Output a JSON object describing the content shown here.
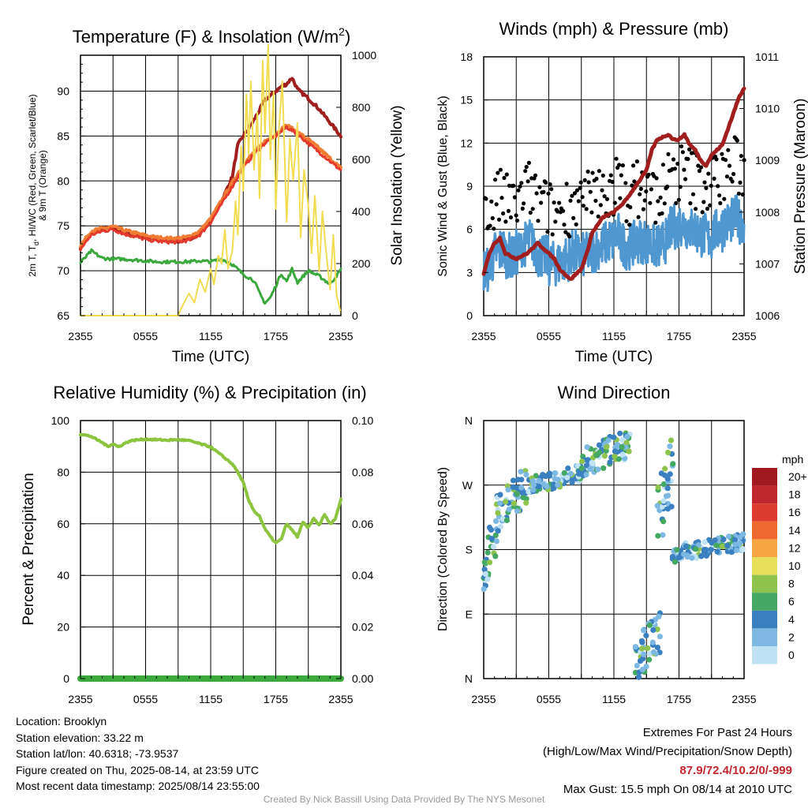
{
  "panels": {
    "temp": {
      "title": "Temperature (F) & Insolation (W/m",
      "title_sup": "2",
      "title_close": ")",
      "ylabel_line1": "2m T, T",
      "ylabel_sub": "d",
      "ylabel_line1b": ", HI/WC (Red, Green, Scarlet/Blue)",
      "ylabel_line2": "& 9m T (Orange)",
      "ylabel_right": "Solar Insolation (Yellow)",
      "xlabel": "Time (UTC)"
    },
    "wind": {
      "title": "Winds (mph) & Pressure (mb)",
      "ylabel_left": "Sonic Wind & Gust (Blue, Black)",
      "ylabel_right": "Station Pressure (Maroon)",
      "xlabel": "Time (UTC)"
    },
    "rh": {
      "title": "Relative Humidity (%) & Precipitation (in)",
      "ylabel_left": "Percent & Precipitation"
    },
    "wdir": {
      "title": "Wind Direction",
      "ylabel_left": "Direction (Colored By Speed)",
      "legend_unit": "mph",
      "legend_labels": [
        "20+",
        "18",
        "16",
        "14",
        "12",
        "10",
        "8",
        "6",
        "4",
        "2",
        "0"
      ],
      "legend_colors": [
        "#9e1a1e",
        "#c1262d",
        "#de3b2f",
        "#ef6a30",
        "#f6a742",
        "#e8df5a",
        "#8ec44d",
        "#44a862",
        "#3a7fc0",
        "#7cb8e2",
        "#bfe2f5"
      ]
    }
  },
  "station": {
    "location": "Location: Brooklyn",
    "elevation": "Station elevation: 33.22 m",
    "latlon": "Station lat/lon: 40.6318; -73.9537",
    "created": "Figure created on Thu, 2025-08-14, at 23:59 UTC",
    "recent": "Most recent data timestamp: 2025/08/14 23:55:00"
  },
  "extremes": {
    "line1": "Extremes For Past 24 Hours",
    "line2": "(High/Low/Max Wind/Precipitation/Snow Depth)",
    "values": "87.9/72.4/10.2/0/-999",
    "gust": "Max Gust: 15.5 mph On 08/14 at 2010 UTC"
  },
  "credit": "Created By Nick Bassill Using Data Provided By The NYS Mesonet",
  "chart_data": [
    {
      "type": "line",
      "title": "Temperature (F) & Insolation (W/m2)",
      "xlabel": "Time (UTC)",
      "x_ticks": [
        "2355",
        "0555",
        "1155",
        "1755",
        "2355"
      ],
      "x_hours": [
        0,
        6,
        12,
        18,
        24
      ],
      "ylim": [
        65,
        94
      ],
      "y_ticks": [
        65,
        70,
        75,
        80,
        85,
        90
      ],
      "y2lim": [
        0,
        1000
      ],
      "y2_ticks": [
        0,
        200,
        400,
        600,
        800,
        1000
      ],
      "series": [
        {
          "axis": "left",
          "color": "#a01e1e",
          "width": 4,
          "x": [
            0,
            1,
            2,
            3,
            4,
            5,
            6,
            7,
            8,
            9,
            10,
            11,
            12,
            13,
            14,
            14.5,
            15,
            15.5,
            16,
            17,
            18,
            18.5,
            19,
            19.5,
            20,
            21,
            22,
            23,
            24
          ],
          "values": [
            72.6,
            74.2,
            74.6,
            74.8,
            74.3,
            74.0,
            73.7,
            73.5,
            73.4,
            73.3,
            73.5,
            74.2,
            75.6,
            77.7,
            80.5,
            84.0,
            85.0,
            85.8,
            86.8,
            89.0,
            90.0,
            90.5,
            90.8,
            91.5,
            90.2,
            89.2,
            88.0,
            86.5,
            85.0
          ]
        },
        {
          "axis": "left",
          "color": "#f07d33",
          "width": 4,
          "x": [
            0,
            1,
            2,
            3,
            4,
            5,
            6,
            7,
            8,
            9,
            10,
            11,
            12,
            13,
            14,
            15,
            16,
            17,
            18,
            19,
            20,
            21,
            22,
            23,
            24
          ],
          "values": [
            72.8,
            74.4,
            74.7,
            74.9,
            74.5,
            74.2,
            73.9,
            73.7,
            73.6,
            73.6,
            73.8,
            74.4,
            75.8,
            77.8,
            79.8,
            81.8,
            83.2,
            84.4,
            85.2,
            86.2,
            85.4,
            84.6,
            83.6,
            82.5,
            81.4
          ]
        },
        {
          "axis": "left",
          "color": "#e33a2c",
          "width": 3,
          "x": [
            0,
            1,
            2,
            3,
            4,
            5,
            6,
            7,
            8,
            9,
            10,
            11,
            12,
            13,
            14,
            15,
            16,
            17,
            18,
            19,
            20,
            21,
            22,
            23,
            24
          ],
          "values": [
            72.4,
            74.0,
            74.4,
            74.6,
            74.1,
            73.8,
            73.5,
            73.3,
            73.2,
            73.2,
            73.4,
            74.0,
            75.4,
            77.4,
            79.4,
            81.5,
            83.0,
            84.2,
            85.0,
            86.0,
            85.2,
            84.2,
            83.2,
            82.2,
            81.2
          ]
        },
        {
          "axis": "left",
          "color": "#3aa83c",
          "width": 3,
          "x": [
            0,
            1,
            2,
            3,
            4,
            5,
            6,
            7,
            8,
            9,
            10,
            11,
            12,
            13,
            14,
            15,
            16,
            16.5,
            17,
            17.5,
            18,
            18.5,
            19,
            19.5,
            20,
            21,
            22,
            23,
            24
          ],
          "values": [
            70.9,
            72.2,
            71.4,
            71.3,
            71.3,
            71.2,
            71.1,
            71.0,
            71.0,
            71.0,
            71.0,
            71.1,
            71.0,
            71.3,
            70.7,
            69.6,
            68.9,
            67.5,
            66.4,
            67.0,
            68.3,
            69.7,
            68.8,
            70.2,
            68.7,
            70.0,
            69.4,
            68.5,
            70.1
          ]
        },
        {
          "axis": "right",
          "color": "#f2dd52",
          "width": 2,
          "x": [
            0,
            9,
            9.3,
            10,
            10.5,
            11,
            11.5,
            12,
            12.3,
            12.7,
            13,
            13.3,
            13.6,
            14,
            14.3,
            14.5,
            14.8,
            15,
            15.3,
            15.5,
            15.7,
            16,
            16.3,
            16.5,
            16.8,
            17,
            17.3,
            17.5,
            17.8,
            18,
            18.3,
            18.6,
            19,
            19.3,
            19.6,
            20,
            20.3,
            20.6,
            21,
            21.3,
            21.6,
            22,
            22.3,
            22.6,
            23,
            23.3,
            23.6,
            24
          ],
          "values": [
            0,
            0,
            30,
            85,
            50,
            140,
            90,
            180,
            120,
            230,
            200,
            330,
            180,
            250,
            440,
            310,
            650,
            480,
            850,
            620,
            900,
            560,
            780,
            450,
            980,
            700,
            1040,
            600,
            860,
            410,
            720,
            900,
            360,
            680,
            520,
            740,
            300,
            560,
            420,
            240,
            460,
            170,
            400,
            260,
            100,
            310,
            80,
            10
          ]
        }
      ]
    },
    {
      "type": "line",
      "title": "Winds (mph) & Pressure (mb)",
      "xlabel": "Time (UTC)",
      "x_ticks": [
        "2355",
        "0555",
        "1155",
        "1755",
        "2355"
      ],
      "x_hours": [
        0,
        6,
        12,
        18,
        24
      ],
      "ylim": [
        0,
        18
      ],
      "y_ticks": [
        0,
        3,
        6,
        9,
        12,
        15,
        18
      ],
      "y2lim": [
        1006,
        1011
      ],
      "y2_ticks": [
        1006,
        1007,
        1008,
        1009,
        1010,
        1011
      ],
      "series": [
        {
          "name": "pressure",
          "axis": "right",
          "color": "#a01e1e",
          "width": 5,
          "x": [
            0,
            0.5,
            1,
            1.5,
            2,
            3,
            4,
            5,
            6,
            6.5,
            7,
            8,
            8.5,
            9,
            9.5,
            10,
            11,
            12,
            13,
            14,
            15,
            15.5,
            16,
            17,
            17.5,
            18,
            18.5,
            19,
            19.5,
            20,
            20.5,
            21,
            21.5,
            22,
            22.5,
            23,
            23.5,
            24
          ],
          "values": [
            1006.8,
            1007.2,
            1007.4,
            1007.5,
            1007.2,
            1007.1,
            1007.2,
            1007.4,
            1007.2,
            1007.1,
            1006.9,
            1006.7,
            1006.8,
            1006.9,
            1007.2,
            1007.6,
            1007.9,
            1008.0,
            1008.2,
            1008.5,
            1008.8,
            1009.2,
            1009.4,
            1009.5,
            1009.4,
            1009.4,
            1009.5,
            1009.3,
            1009.2,
            1009.0,
            1008.9,
            1009.1,
            1009.2,
            1009.3,
            1009.6,
            1009.9,
            1010.2,
            1010.4
          ]
        },
        {
          "name": "wind",
          "axis": "left",
          "color": "#4f97d0",
          "width": 3,
          "base": [
            3.2,
            3.8,
            4.4,
            4.6,
            4.2,
            4.0,
            4.4,
            5.0,
            5.2,
            4.6,
            4.2,
            4.0,
            3.6,
            3.6,
            3.8,
            4.0,
            4.4,
            4.2,
            4.2,
            4.4,
            4.6,
            4.8,
            5.0,
            5.2,
            5.6,
            5.0,
            4.8,
            5.0,
            5.2,
            5.2,
            5.0,
            4.8,
            4.8,
            5.2,
            6.0,
            6.2,
            6.4,
            6.2,
            6.0,
            5.8,
            5.6,
            5.4,
            5.8,
            6.0,
            6.4,
            6.6,
            6.8,
            6.6,
            6.6
          ]
        }
      ]
    },
    {
      "type": "line",
      "title": "Relative Humidity (%) & Precipitation (in)",
      "x_ticks": [
        "2355",
        "0555",
        "1155",
        "1755",
        "2355"
      ],
      "x_hours": [
        0,
        6,
        12,
        18,
        24
      ],
      "ylim": [
        0,
        100
      ],
      "y_ticks": [
        0,
        20,
        40,
        60,
        80,
        100
      ],
      "y2lim": [
        0,
        0.1
      ],
      "y2_ticks": [
        "0.00",
        "0.02",
        "0.04",
        "0.06",
        "0.08",
        "0.10"
      ],
      "series": [
        {
          "axis": "left",
          "color": "#8cc43f",
          "width": 4,
          "x": [
            0,
            1,
            1.5,
            2,
            2.5,
            3,
            3.5,
            4,
            4.5,
            5,
            6,
            7,
            8,
            9,
            10,
            11,
            12,
            13,
            14,
            14.5,
            15,
            15.5,
            16,
            16.5,
            17,
            17.5,
            18,
            18.5,
            19,
            19.5,
            20,
            20.5,
            21,
            21.5,
            22,
            22.5,
            23,
            23.5,
            24
          ],
          "values": [
            94.8,
            93.8,
            92.6,
            91.5,
            90.0,
            91.0,
            89.8,
            91.0,
            92.0,
            92.4,
            92.8,
            92.6,
            92.4,
            92.6,
            92.2,
            91.0,
            89.8,
            86.5,
            83.2,
            80.0,
            76.0,
            69.0,
            65.0,
            63.0,
            58.0,
            55.0,
            52.5,
            54.0,
            60.0,
            57.5,
            55.0,
            60.5,
            58.5,
            62.0,
            59.5,
            63.5,
            60.0,
            62.0,
            69.5
          ]
        },
        {
          "axis": "right",
          "color": "#3aa83c",
          "width": 8,
          "x": [
            0,
            24
          ],
          "values": [
            0,
            0
          ]
        }
      ]
    },
    {
      "type": "scatter",
      "title": "Wind Direction",
      "x_ticks": [
        "2355",
        "0555",
        "1155",
        "1755",
        "2355"
      ],
      "x_hours": [
        0,
        6,
        12,
        18,
        24
      ],
      "y_ticks": [
        "N",
        "E",
        "S",
        "W",
        "N"
      ],
      "ylim": [
        0,
        360
      ],
      "colorbar": {
        "unit": "mph",
        "labels": [
          "20+",
          "18",
          "16",
          "14",
          "12",
          "10",
          "8",
          "6",
          "4",
          "2",
          "0"
        ]
      },
      "clusters": [
        {
          "x_range": [
            0,
            1.2
          ],
          "dir_range": [
            130,
            230
          ]
        },
        {
          "x_range": [
            1.2,
            4.0
          ],
          "dir_range": [
            210,
            290
          ]
        },
        {
          "x_range": [
            4.0,
            9.0
          ],
          "dir_range": [
            260,
            295
          ]
        },
        {
          "x_range": [
            9.0,
            13.5
          ],
          "dir_range": [
            285,
            345
          ]
        },
        {
          "x_range": [
            14.0,
            16.3
          ],
          "dir_range": [
            0,
            90
          ]
        },
        {
          "x_range": [
            16.0,
            17.5
          ],
          "dir_range": [
            180,
            340
          ]
        },
        {
          "x_range": [
            17.3,
            24.0
          ],
          "dir_range": [
            165,
            200
          ]
        }
      ]
    }
  ]
}
